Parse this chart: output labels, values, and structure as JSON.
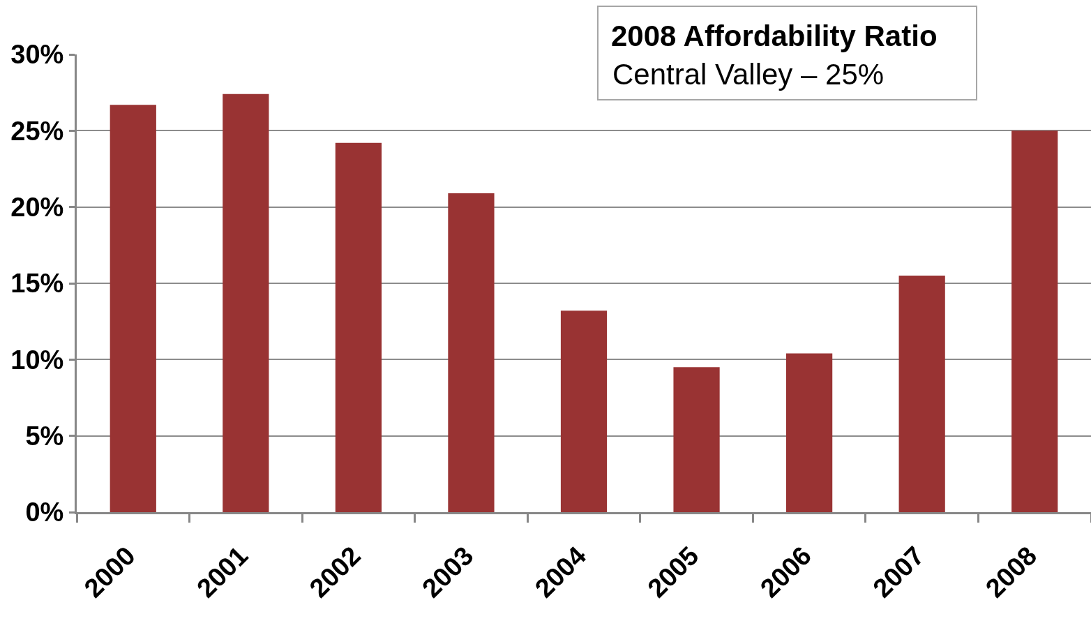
{
  "chart_data": {
    "type": "bar",
    "title": "2008 Affordability Ratio",
    "subtitle": "Central Valley – 25%",
    "categories": [
      "2000",
      "2001",
      "2002",
      "2003",
      "2004",
      "2005",
      "2006",
      "2007",
      "2008"
    ],
    "values": [
      26.7,
      27.4,
      24.2,
      20.9,
      13.2,
      9.5,
      10.4,
      15.5,
      25.0
    ],
    "color": "#993333",
    "ylim": [
      0,
      30
    ],
    "yticks": [
      {
        "value": 0,
        "label": "0%"
      },
      {
        "value": 5,
        "label": "5%"
      },
      {
        "value": 10,
        "label": "10%"
      },
      {
        "value": 15,
        "label": "15%"
      },
      {
        "value": 20,
        "label": "20%"
      },
      {
        "value": 25,
        "label": "25%"
      },
      {
        "value": 30,
        "label": "30%"
      }
    ],
    "grid": "y"
  }
}
